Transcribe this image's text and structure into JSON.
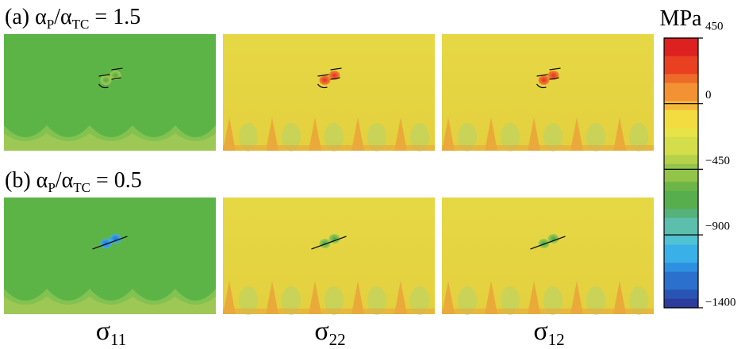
{
  "row_labels": [
    {
      "text": [
        "(a)  α",
        "P",
        "/α",
        "TC",
        " = 1.5"
      ]
    },
    {
      "text": [
        "(b)  α",
        "P",
        "/α",
        "TC",
        " = 0.5"
      ]
    }
  ],
  "column_labels": [
    {
      "text": [
        "σ",
        "11"
      ]
    },
    {
      "text": [
        "σ",
        "22"
      ]
    },
    {
      "text": [
        "σ",
        "12"
      ]
    }
  ],
  "colorbar": {
    "unit": "MPa",
    "lim": [
      -1400,
      450
    ],
    "ticks": [
      450,
      0,
      {
        "value": -450,
        "label": "−450"
      },
      {
        "value": -900,
        "label": "−900"
      },
      {
        "value": -1400,
        "label": "−1400"
      }
    ]
  }
}
